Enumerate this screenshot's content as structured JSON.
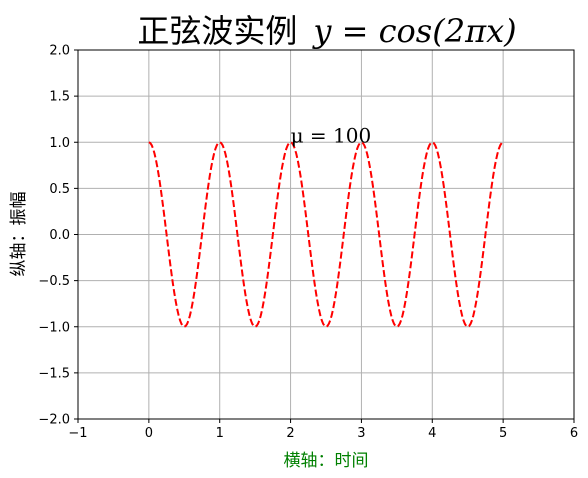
{
  "chart_data": {
    "type": "line",
    "title": "正弦波实例  y = cos(2πx)",
    "title_cn": "正弦波实例",
    "title_math": "y = cos(2πx)",
    "xlabel": "横轴：时间",
    "ylabel": "纵轴：振幅",
    "xlim": [
      -1,
      6
    ],
    "ylim": [
      -2.0,
      2.0
    ],
    "x_ticks": [
      "−1",
      "0",
      "1",
      "2",
      "3",
      "4",
      "5",
      "6"
    ],
    "y_ticks": [
      "−2.0",
      "−1.5",
      "−1.0",
      "−0.5",
      "0.0",
      "0.5",
      "1.0",
      "1.5",
      "2.0"
    ],
    "grid": true,
    "series": [
      {
        "function": "cos(2*pi*x)",
        "x_start": 0,
        "x_end": 5,
        "x_step": 0.02,
        "color": "#ff0000",
        "line_style": "dashed"
      }
    ],
    "annotations": [
      {
        "text": "μ = 100",
        "x": 2,
        "y": 1
      }
    ],
    "colors": {
      "line": "#ff0000",
      "xlabel": "#008000",
      "grid": "#b0b0b0"
    }
  }
}
